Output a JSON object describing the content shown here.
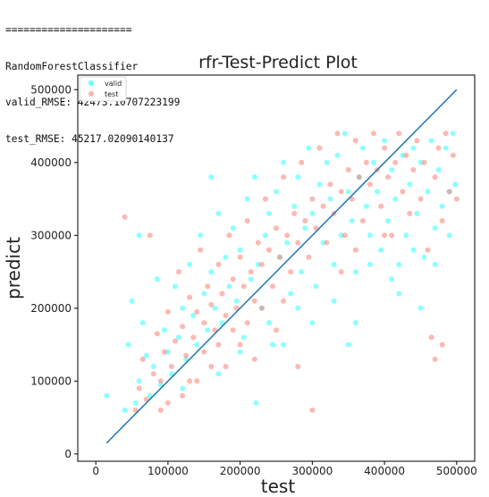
{
  "console": {
    "separator": "=====================",
    "model_name": "RandomForestClassifier",
    "valid_rmse": "valid_RMSE: 42473.10707223199",
    "test_rmse": "test_RMSE: 45217.02090140137"
  },
  "chart_data": {
    "type": "scatter",
    "title": "rfr-Test-Predict Plot",
    "xlabel": "test",
    "ylabel": "predict",
    "xlim": [
      -25000,
      525000
    ],
    "ylim": [
      -10000,
      520000
    ],
    "xticks": [
      0,
      100000,
      200000,
      300000,
      400000,
      500000
    ],
    "yticks": [
      0,
      100000,
      200000,
      300000,
      400000,
      500000
    ],
    "xtick_labels": [
      "0",
      "100000",
      "200000",
      "300000",
      "400000",
      "500000"
    ],
    "ytick_labels": [
      "0",
      "100000",
      "200000",
      "300000",
      "400000",
      "500000"
    ],
    "grid": false,
    "legend_position": "top-left",
    "series": [
      {
        "name": "valid",
        "color": "#00ffff",
        "alpha": 0.45,
        "points": [
          [
            15000,
            80000
          ],
          [
            40000,
            60000
          ],
          [
            45000,
            150000
          ],
          [
            50000,
            210000
          ],
          [
            55000,
            70000
          ],
          [
            60000,
            100000
          ],
          [
            65000,
            180000
          ],
          [
            70000,
            135000
          ],
          [
            75000,
            80000
          ],
          [
            80000,
            120000
          ],
          [
            85000,
            240000
          ],
          [
            90000,
            95000
          ],
          [
            95000,
            170000
          ],
          [
            100000,
            140000
          ],
          [
            105000,
            110000
          ],
          [
            110000,
            230000
          ],
          [
            115000,
            160000
          ],
          [
            120000,
            200000
          ],
          [
            125000,
            130000
          ],
          [
            130000,
            260000
          ],
          [
            135000,
            190000
          ],
          [
            140000,
            150000
          ],
          [
            145000,
            300000
          ],
          [
            150000,
            220000
          ],
          [
            155000,
            170000
          ],
          [
            160000,
            250000
          ],
          [
            165000,
            200000
          ],
          [
            170000,
            330000
          ],
          [
            175000,
            180000
          ],
          [
            180000,
            270000
          ],
          [
            185000,
            230000
          ],
          [
            190000,
            310000
          ],
          [
            195000,
            210000
          ],
          [
            200000,
            280000
          ],
          [
            205000,
            160000
          ],
          [
            210000,
            350000
          ],
          [
            215000,
            240000
          ],
          [
            220000,
            380000
          ],
          [
            225000,
            260000
          ],
          [
            230000,
            200000
          ],
          [
            235000,
            300000
          ],
          [
            240000,
            330000
          ],
          [
            245000,
            150000
          ],
          [
            250000,
            360000
          ],
          [
            255000,
            270000
          ],
          [
            260000,
            400000
          ],
          [
            265000,
            290000
          ],
          [
            270000,
            220000
          ],
          [
            275000,
            340000
          ],
          [
            280000,
            380000
          ],
          [
            285000,
            250000
          ],
          [
            290000,
            310000
          ],
          [
            295000,
            420000
          ],
          [
            300000,
            330000
          ],
          [
            305000,
            230000
          ],
          [
            310000,
            370000
          ],
          [
            315000,
            290000
          ],
          [
            320000,
            400000
          ],
          [
            325000,
            350000
          ],
          [
            330000,
            260000
          ],
          [
            335000,
            410000
          ],
          [
            340000,
            300000
          ],
          [
            345000,
            440000
          ],
          [
            350000,
            360000
          ],
          [
            355000,
            320000
          ],
          [
            360000,
            250000
          ],
          [
            365000,
            380000
          ],
          [
            370000,
            420000
          ],
          [
            375000,
            340000
          ],
          [
            380000,
            300000
          ],
          [
            385000,
            400000
          ],
          [
            390000,
            360000
          ],
          [
            395000,
            280000
          ],
          [
            400000,
            430000
          ],
          [
            405000,
            320000
          ],
          [
            410000,
            390000
          ],
          [
            415000,
            350000
          ],
          [
            420000,
            260000
          ],
          [
            425000,
            410000
          ],
          [
            430000,
            300000
          ],
          [
            435000,
            370000
          ],
          [
            440000,
            420000
          ],
          [
            445000,
            330000
          ],
          [
            450000,
            400000
          ],
          [
            455000,
            270000
          ],
          [
            460000,
            360000
          ],
          [
            465000,
            430000
          ],
          [
            470000,
            310000
          ],
          [
            475000,
            390000
          ],
          [
            480000,
            340000
          ],
          [
            485000,
            420000
          ],
          [
            490000,
            300000
          ],
          [
            495000,
            440000
          ],
          [
            498000,
            370000
          ],
          [
            222000,
            70000
          ],
          [
            60000,
            300000
          ],
          [
            160000,
            380000
          ],
          [
            300000,
            180000
          ],
          [
            350000,
            150000
          ],
          [
            450000,
            200000
          ],
          [
            420000,
            220000
          ],
          [
            120000,
            90000
          ],
          [
            170000,
            110000
          ],
          [
            200000,
            140000
          ],
          [
            240000,
            180000
          ],
          [
            260000,
            150000
          ],
          [
            280000,
            200000
          ],
          [
            330000,
            210000
          ],
          [
            360000,
            180000
          ],
          [
            380000,
            260000
          ],
          [
            410000,
            240000
          ],
          [
            440000,
            280000
          ],
          [
            470000,
            260000
          ],
          [
            490000,
            360000
          ]
        ]
      },
      {
        "name": "test",
        "color": "#fa8072",
        "alpha": 0.55,
        "points": [
          [
            40000,
            325000
          ],
          [
            55000,
            60000
          ],
          [
            60000,
            90000
          ],
          [
            65000,
            130000
          ],
          [
            70000,
            75000
          ],
          [
            75000,
            300000
          ],
          [
            80000,
            110000
          ],
          [
            85000,
            165000
          ],
          [
            90000,
            100000
          ],
          [
            95000,
            140000
          ],
          [
            100000,
            195000
          ],
          [
            105000,
            120000
          ],
          [
            110000,
            155000
          ],
          [
            115000,
            250000
          ],
          [
            120000,
            175000
          ],
          [
            125000,
            135000
          ],
          [
            130000,
            215000
          ],
          [
            135000,
            160000
          ],
          [
            140000,
            195000
          ],
          [
            145000,
            280000
          ],
          [
            150000,
            180000
          ],
          [
            155000,
            230000
          ],
          [
            160000,
            205000
          ],
          [
            165000,
            170000
          ],
          [
            170000,
            260000
          ],
          [
            175000,
            220000
          ],
          [
            180000,
            190000
          ],
          [
            185000,
            300000
          ],
          [
            190000,
            240000
          ],
          [
            195000,
            200000
          ],
          [
            200000,
            270000
          ],
          [
            205000,
            230000
          ],
          [
            210000,
            320000
          ],
          [
            215000,
            250000
          ],
          [
            220000,
            210000
          ],
          [
            225000,
            290000
          ],
          [
            230000,
            260000
          ],
          [
            235000,
            350000
          ],
          [
            240000,
            280000
          ],
          [
            245000,
            230000
          ],
          [
            250000,
            310000
          ],
          [
            255000,
            270000
          ],
          [
            260000,
            380000
          ],
          [
            265000,
            300000
          ],
          [
            270000,
            250000
          ],
          [
            275000,
            330000
          ],
          [
            280000,
            290000
          ],
          [
            285000,
            400000
          ],
          [
            290000,
            320000
          ],
          [
            295000,
            270000
          ],
          [
            300000,
            350000
          ],
          [
            305000,
            310000
          ],
          [
            310000,
            420000
          ],
          [
            315000,
            340000
          ],
          [
            320000,
            290000
          ],
          [
            325000,
            370000
          ],
          [
            330000,
            330000
          ],
          [
            335000,
            440000
          ],
          [
            340000,
            360000
          ],
          [
            345000,
            300000
          ],
          [
            350000,
            390000
          ],
          [
            355000,
            350000
          ],
          [
            360000,
            430000
          ],
          [
            365000,
            380000
          ],
          [
            370000,
            320000
          ],
          [
            375000,
            400000
          ],
          [
            380000,
            370000
          ],
          [
            385000,
            440000
          ],
          [
            390000,
            390000
          ],
          [
            395000,
            340000
          ],
          [
            400000,
            420000
          ],
          [
            405000,
            380000
          ],
          [
            410000,
            300000
          ],
          [
            415000,
            400000
          ],
          [
            420000,
            440000
          ],
          [
            425000,
            360000
          ],
          [
            430000,
            410000
          ],
          [
            435000,
            330000
          ],
          [
            440000,
            390000
          ],
          [
            445000,
            430000
          ],
          [
            450000,
            350000
          ],
          [
            455000,
            400000
          ],
          [
            460000,
            280000
          ],
          [
            465000,
            160000
          ],
          [
            470000,
            380000
          ],
          [
            475000,
            420000
          ],
          [
            480000,
            320000
          ],
          [
            485000,
            440000
          ],
          [
            490000,
            360000
          ],
          [
            495000,
            410000
          ],
          [
            500000,
            350000
          ],
          [
            470000,
            130000
          ],
          [
            480000,
            150000
          ],
          [
            250000,
            170000
          ],
          [
            280000,
            120000
          ],
          [
            300000,
            60000
          ],
          [
            180000,
            120000
          ],
          [
            200000,
            150000
          ],
          [
            160000,
            120000
          ],
          [
            140000,
            100000
          ],
          [
            120000,
            80000
          ],
          [
            100000,
            70000
          ],
          [
            90000,
            60000
          ],
          [
            130000,
            100000
          ],
          [
            150000,
            140000
          ],
          [
            170000,
            150000
          ],
          [
            190000,
            170000
          ],
          [
            210000,
            180000
          ],
          [
            230000,
            200000
          ],
          [
            220000,
            130000
          ],
          [
            260000,
            210000
          ],
          [
            340000,
            250000
          ],
          [
            360000,
            280000
          ],
          [
            400000,
            300000
          ]
        ]
      }
    ],
    "reference_line": {
      "from": [
        15000,
        15000
      ],
      "to": [
        500000,
        500000
      ],
      "color": "#1f77b4"
    }
  }
}
